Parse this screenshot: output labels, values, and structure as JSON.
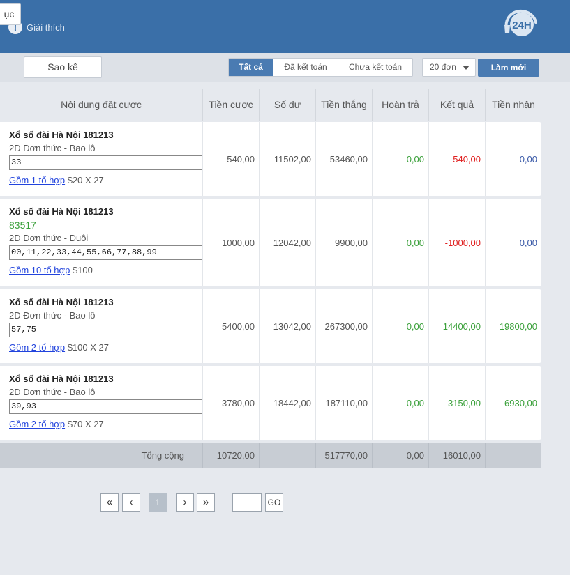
{
  "header": {
    "help_label": "Giải thích",
    "help_icon": "exclamation-icon",
    "logo_text": "24H"
  },
  "toolbar": {
    "catalog_label": "ục",
    "statement_label": "Sao kê",
    "filter_tabs": [
      "Tất cả",
      "Đã kết toán",
      "Chưa kết toán"
    ],
    "active_tab": "Tất cả",
    "page_size": "20 đơn",
    "refresh_label": "Làm mới"
  },
  "table": {
    "columns": [
      "Nội dung đặt cược",
      "Tiền cược",
      "Số dư",
      "Tiền thắng",
      "Hoàn trả",
      "Kết quả",
      "Tiền nhận"
    ],
    "rows": [
      {
        "title": "Xổ số đài Hà Nội 181213",
        "win_number": "",
        "type": "2D Đơn thức - Bao lô",
        "numbers": "33",
        "combo_link": "Gồm 1 tổ hợp",
        "combo_detail": " $20 X 27",
        "stake": "540,00",
        "balance": "11502,00",
        "winnings": "53460,00",
        "refund": "0,00",
        "result": "-540,00",
        "received": "0,00"
      },
      {
        "title": "Xổ số đài Hà Nội 181213",
        "win_number": "83517",
        "type": "2D Đơn thức - Đuôi",
        "numbers": "00,11,22,33,44,55,66,77,88,99",
        "combo_link": "Gồm 10 tổ hợp",
        "combo_detail": " $100",
        "stake": "1000,00",
        "balance": "12042,00",
        "winnings": "9900,00",
        "refund": "0,00",
        "result": "-1000,00",
        "received": "0,00"
      },
      {
        "title": "Xổ số đài Hà Nội 181213",
        "win_number": "",
        "type": "2D Đơn thức - Bao lô",
        "numbers": "57,75",
        "combo_link": "Gồm 2 tổ hợp",
        "combo_detail": " $100 X 27",
        "stake": "5400,00",
        "balance": "13042,00",
        "winnings": "267300,00",
        "refund": "0,00",
        "result": "14400,00",
        "received": "19800,00"
      },
      {
        "title": "Xổ số đài Hà Nội 181213",
        "win_number": "",
        "type": "2D Đơn thức - Bao lô",
        "numbers": "39,93",
        "combo_link": "Gồm 2 tổ hợp",
        "combo_detail": " $70 X 27",
        "stake": "3780,00",
        "balance": "18442,00",
        "winnings": "187110,00",
        "refund": "0,00",
        "result": "3150,00",
        "received": "6930,00"
      }
    ],
    "total": {
      "label": "Tổng cộng",
      "stake": "10720,00",
      "balance": "",
      "winnings": "517770,00",
      "refund": "0,00",
      "result": "16010,00",
      "received": ""
    }
  },
  "pagination": {
    "first": "«",
    "prev": "‹",
    "current_page": "1",
    "next": "›",
    "last": "»",
    "goto_value": "",
    "go_label": "GO"
  },
  "colors": {
    "header_bg": "#3a6fa8",
    "accent": "#4a7bb2",
    "positive": "#3aa03a",
    "negative": "#e02020",
    "link": "#2244dd"
  }
}
